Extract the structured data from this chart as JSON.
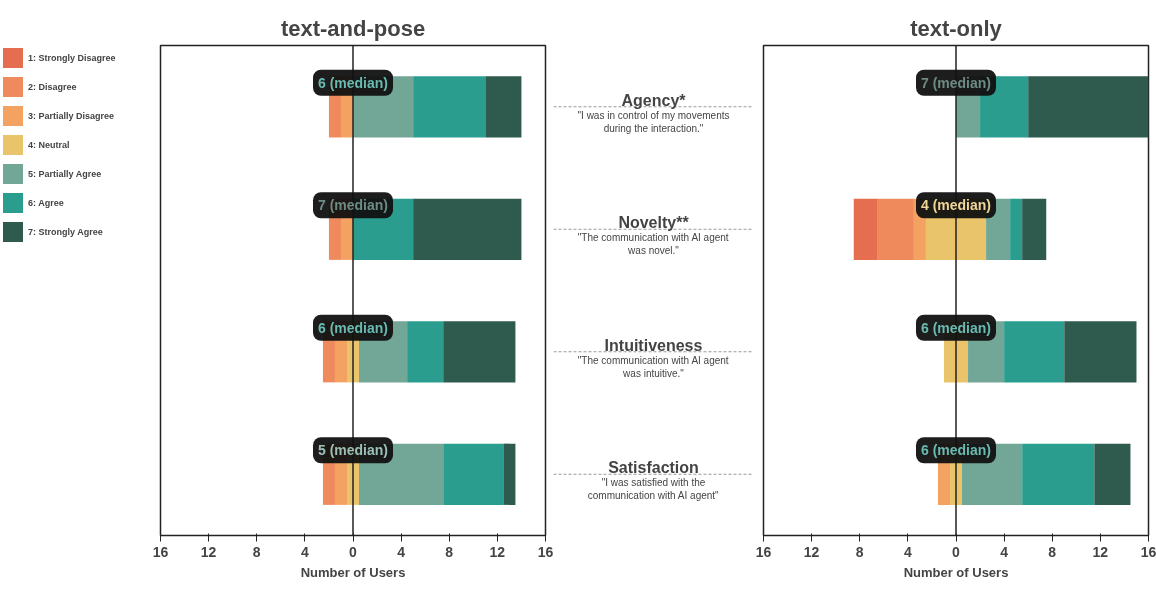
{
  "chart_data": [
    {
      "type": "bar",
      "title": "text-and-pose",
      "xlabel": "Number of Users",
      "orientation": "horizontal",
      "categories": [
        "Agency*",
        "Novelty**",
        "Intuitiveness",
        "Satisfaction"
      ],
      "series": [
        {
          "name": "1: Strongly Disagree",
          "color": "#e56e50",
          "values": [
            0,
            0,
            0,
            0
          ],
          "base": [
            null,
            null,
            null,
            null
          ]
        },
        {
          "name": "2: Disagree",
          "color": "#ee8a5b",
          "values": [
            1,
            1,
            1,
            1
          ],
          "base": [
            -2,
            -2,
            -2.5,
            -2.5
          ]
        },
        {
          "name": "3: Partially Disagree",
          "color": "#f4a261",
          "values": [
            1,
            1,
            1,
            1
          ],
          "base": [
            -1,
            -1,
            -1.5,
            -1.5
          ]
        },
        {
          "name": "4: Neutral",
          "color": "#e9c46a",
          "values": [
            0,
            0,
            1,
            1
          ],
          "base": [
            null,
            null,
            -0.5,
            -0.5
          ]
        },
        {
          "name": "5: Partially Agree",
          "color": "#72a697",
          "values": [
            5,
            0,
            4,
            7
          ],
          "base": [
            0,
            null,
            0.5,
            0.5
          ]
        },
        {
          "name": "6: Agree",
          "color": "#2a9d8f",
          "values": [
            6,
            5,
            3,
            5
          ],
          "base": [
            5,
            0,
            4.5,
            7.5
          ]
        },
        {
          "name": "7: Strongly Agree",
          "color": "#2f5a4e",
          "values": [
            3,
            9,
            6,
            1
          ],
          "base": [
            11,
            5,
            7.5,
            12.5
          ]
        }
      ],
      "xlim": [
        -16,
        16
      ],
      "xticks": [
        {
          "value": -16,
          "label": "16"
        },
        {
          "value": -12,
          "label": "12"
        },
        {
          "value": -8,
          "label": "8"
        },
        {
          "value": -4,
          "label": "4"
        },
        0,
        4,
        8,
        12,
        16
      ],
      "ref_lines": [
        {
          "axis": "x",
          "value": 0
        }
      ],
      "annotations": [
        "6 (median)",
        "7 (median)",
        "6 (median)",
        "5 (median)",
        "\"I was in control of my movements during the interaction.\"",
        "\"The communication with AI agent was novel.\"",
        "\"The communication with AI agent was intuitive.\"",
        "\"I was satisfied with the communication with AI agent\""
      ],
      "legend": "top left",
      "grid": false
    },
    {
      "type": "bar",
      "title": "text-only",
      "xlabel": "Number of Users",
      "orientation": "horizontal",
      "series": [
        {
          "color": "#e56e50",
          "values": [
            0,
            2,
            0,
            0
          ],
          "base": [
            null,
            -8.5,
            null,
            null
          ]
        },
        {
          "color": "#ee8a5b",
          "values": [
            0,
            3,
            0,
            0
          ],
          "base": [
            null,
            -6.5,
            null,
            null
          ]
        },
        {
          "color": "#f4a261",
          "values": [
            0,
            1,
            0,
            1
          ],
          "base": [
            null,
            -3.5,
            null,
            -1.5
          ]
        },
        {
          "color": "#e9c46a",
          "values": [
            0,
            5,
            2,
            1
          ],
          "base": [
            null,
            -2.5,
            -1,
            -0.5
          ]
        },
        {
          "color": "#72a697",
          "values": [
            2,
            2,
            3,
            5
          ],
          "base": [
            0,
            2.5,
            1,
            0.5
          ]
        },
        {
          "color": "#2a9d8f",
          "values": [
            4,
            1,
            5,
            6
          ],
          "base": [
            2,
            4.5,
            4,
            5.5
          ]
        },
        {
          "color": "#2f5a4e",
          "values": [
            10,
            2,
            6,
            3
          ],
          "base": [
            6,
            5.5,
            9,
            11.5
          ]
        }
      ],
      "xlim": [
        -16,
        16
      ],
      "xticks": [
        {
          "value": -16,
          "label": "16"
        },
        {
          "value": -12,
          "label": "12"
        },
        {
          "value": -8,
          "label": "8"
        },
        {
          "value": -4,
          "label": "4"
        },
        0,
        4,
        8,
        12,
        16
      ],
      "ref_lines": [
        {
          "axis": "x",
          "value": 0
        }
      ],
      "annotations": [
        "7 (median)",
        "4 (median)",
        "6 (median)",
        "6 (median)"
      ],
      "grid": false
    }
  ]
}
